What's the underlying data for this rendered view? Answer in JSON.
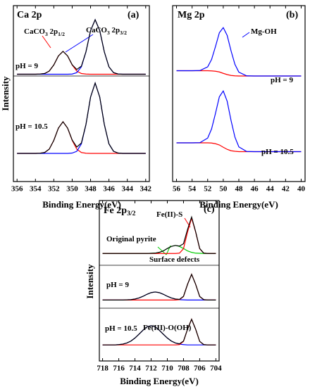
{
  "chart_data": [
    {
      "type": "line",
      "title": [
        "Ca 2p"
      ],
      "panel_label": "(a)",
      "ylabel": "Intensity",
      "xlabel": "Binding Energy(eV)",
      "annotations": [
        [
          "CaCO",
          "3",
          " 2p",
          "1/2"
        ],
        [
          "CaCO",
          "3",
          " 2p",
          "3/2"
        ],
        [
          "pH = 9"
        ],
        [
          "pH = 10.5"
        ]
      ],
      "xlim": [
        356.4,
        341.6
      ],
      "xticks": [
        356,
        354,
        352,
        350,
        348,
        346,
        344,
        342
      ],
      "ylim": [
        0,
        100
      ],
      "x": [
        356,
        355.5,
        355,
        354.5,
        354,
        353.5,
        353,
        352.5,
        352,
        351.5,
        351,
        350.5,
        350,
        349.5,
        349,
        348.5,
        348,
        347.5,
        347,
        346.5,
        346,
        345.5,
        345,
        344.5,
        344,
        343.5,
        343,
        342.5,
        342
      ],
      "series": [
        {
          "color": "#ff0000",
          "values": [
            61,
            61,
            61,
            61,
            61,
            61.1,
            61.4,
            62.8,
            66.3,
            71.4,
            74,
            71.4,
            66.3,
            62.8,
            61.4,
            61.1,
            61,
            61,
            61,
            61,
            61,
            61,
            61,
            61,
            61,
            61,
            61,
            61,
            61
          ]
        },
        {
          "color": "#0000ff",
          "values": [
            61,
            61,
            61,
            61,
            61,
            61,
            61,
            61,
            61,
            61,
            61,
            61,
            61.1,
            61.9,
            65.2,
            73.7,
            85.8,
            92,
            85.8,
            73.7,
            65.2,
            61.9,
            61.1,
            61,
            61,
            61,
            61,
            61,
            61
          ]
        },
        {
          "color": "#000000",
          "values": [
            61,
            61,
            61,
            61,
            61,
            61.1,
            61.4,
            62.8,
            66.3,
            71.4,
            74,
            71.4,
            66.4,
            63.7,
            65.6,
            73.8,
            85.8,
            92,
            85.8,
            73.7,
            65.2,
            61.9,
            61.1,
            61,
            61,
            61,
            61,
            61,
            61
          ]
        },
        {
          "color": "#ff0000",
          "values": [
            16,
            16,
            16,
            16,
            16,
            16.1,
            16.5,
            18.4,
            23.4,
            30.4,
            34,
            30.4,
            23.4,
            18.4,
            16.5,
            16.1,
            16,
            16,
            16,
            16,
            16,
            16,
            16,
            16,
            16,
            16,
            16,
            16,
            16
          ]
        },
        {
          "color": "#0000ff",
          "values": [
            16,
            16,
            16,
            16,
            16,
            16,
            16,
            16,
            16,
            16,
            16,
            16,
            16.2,
            17.2,
            21.4,
            32.4,
            48,
            56,
            48,
            32.4,
            21.4,
            17.2,
            16.2,
            16,
            16,
            16,
            16,
            16,
            16
          ]
        },
        {
          "color": "#000000",
          "values": [
            16,
            16,
            16,
            16,
            16,
            16.1,
            16.5,
            18.4,
            23.4,
            30.4,
            34,
            30.4,
            23.6,
            19.6,
            21.9,
            32.5,
            48,
            56,
            48,
            32.4,
            21.4,
            17.2,
            16.2,
            16,
            16,
            16,
            16,
            16,
            16
          ]
        }
      ]
    },
    {
      "type": "line",
      "title": [
        "Mg 2p"
      ],
      "panel_label": "(b)",
      "xlabel": "Binding Energy(eV)",
      "annotations": [
        [
          "Mg-OH"
        ],
        [
          "pH = 9"
        ],
        [
          "pH = 10.5"
        ]
      ],
      "xlim": [
        56.5,
        39.5
      ],
      "xticks": [
        56,
        54,
        52,
        50,
        48,
        46,
        44,
        42,
        40
      ],
      "ylim": [
        0,
        100
      ],
      "x": [
        56,
        55,
        54,
        53,
        52,
        51.5,
        51,
        50.5,
        50,
        49.5,
        49,
        48.5,
        48,
        47,
        46,
        45,
        44,
        43,
        42,
        41,
        40
      ],
      "series": [
        {
          "color": "#ff0000",
          "values": [
            63,
            63,
            63,
            63,
            63,
            62.9,
            62.7,
            62.3,
            61.5,
            60.8,
            60.3,
            60.1,
            60,
            60,
            60,
            60,
            60,
            60,
            60,
            60,
            60
          ]
        },
        {
          "color": "#0000ff",
          "values": [
            63,
            63,
            63,
            63.1,
            65.2,
            69.4,
            76.7,
            84.6,
            87.5,
            83.1,
            74.3,
            66.6,
            62.2,
            60.1,
            60,
            60,
            60,
            60,
            60,
            60,
            60
          ]
        },
        {
          "color": "#ff0000",
          "values": [
            22,
            22,
            22,
            22,
            22,
            21.9,
            21.5,
            20.8,
            19.5,
            18.3,
            17.5,
            17.2,
            17,
            17,
            17,
            17,
            17,
            17,
            17,
            17,
            17
          ]
        },
        {
          "color": "#0000ff",
          "values": [
            22,
            22,
            22,
            22.1,
            24.7,
            29.9,
            38.7,
            48.2,
            51.5,
            45.7,
            34.7,
            25.2,
            19.7,
            17.1,
            17,
            17,
            17,
            17,
            17,
            17,
            17
          ]
        }
      ]
    },
    {
      "type": "line",
      "title": [
        "Fe 2p",
        "3/2"
      ],
      "panel_label": "(c)",
      "ylabel": "Intensity",
      "xlabel": "Binding Energy(eV)",
      "annotations": [
        [
          "Fe(II)-S"
        ],
        [
          "Original pyrite"
        ],
        [
          "Surface defects"
        ],
        [
          "pH = 9"
        ],
        [
          "pH = 10.5"
        ],
        [
          "Fe(III)-O(OH)"
        ]
      ],
      "xlim": [
        718.4,
        703.6
      ],
      "xticks": [
        718,
        716,
        714,
        712,
        710,
        708,
        706,
        704
      ],
      "ylim": [
        0,
        100
      ],
      "x": [
        718,
        717.5,
        717,
        716.5,
        716,
        715.5,
        715,
        714.5,
        714,
        713.5,
        713,
        712.5,
        712,
        711.5,
        711,
        710.5,
        710,
        709.5,
        709,
        708.5,
        708,
        707.5,
        707,
        706.5,
        706,
        705.5,
        705,
        704.5,
        704
      ],
      "series": [
        {
          "color": "#00cc00",
          "values": [
            67,
            67,
            67,
            67,
            67,
            67,
            67,
            67,
            67,
            67,
            67,
            67,
            67.1,
            67.2,
            67.7,
            68.6,
            70.1,
            71.4,
            72,
            71.4,
            70.1,
            68.6,
            67.7,
            67.2,
            67.1,
            67,
            67,
            67,
            67
          ]
        },
        {
          "color": "#ff0000",
          "values": [
            67,
            67,
            67,
            67,
            67,
            67,
            67,
            67,
            67,
            67,
            67,
            67,
            67,
            67,
            67,
            67,
            67,
            67,
            67,
            67.2,
            70,
            80.4,
            89,
            80.4,
            70,
            67.2,
            67,
            67,
            67
          ]
        },
        {
          "color": "#000000",
          "values": [
            67,
            67,
            67,
            67,
            67,
            67,
            67,
            67,
            67,
            67,
            67,
            67,
            67.1,
            67.2,
            67.7,
            68.6,
            70.1,
            71.4,
            72,
            71.6,
            73.1,
            82,
            89.7,
            80.6,
            70.1,
            67.2,
            67,
            67,
            67
          ]
        },
        {
          "color": "#0000ff",
          "values": [
            38,
            38,
            38,
            38,
            38,
            38,
            38.1,
            38.2,
            38.6,
            39.3,
            40.3,
            41.6,
            42.6,
            43,
            42.6,
            41.6,
            40.3,
            39.3,
            38.6,
            38.2,
            38.1,
            38,
            38,
            38,
            38,
            38,
            38,
            38,
            38
          ]
        },
        {
          "color": "#ff0000",
          "values": [
            38,
            38,
            38,
            38,
            38,
            38,
            38,
            38,
            38,
            38,
            38,
            38,
            38,
            38,
            38,
            38,
            38,
            38,
            38,
            38.2,
            40.2,
            47.8,
            54,
            47.8,
            40.2,
            38.2,
            38,
            38,
            38
          ]
        },
        {
          "color": "#000000",
          "values": [
            38,
            38,
            38,
            38,
            38,
            38,
            38.1,
            38.2,
            38.6,
            39.3,
            40.3,
            41.6,
            42.6,
            43,
            42.6,
            41.6,
            40.3,
            39.3,
            38.6,
            38.4,
            40.3,
            47.8,
            54,
            47.8,
            40.2,
            38.2,
            38,
            38,
            38
          ]
        },
        {
          "color": "#0000ff",
          "values": [
            10,
            10,
            10,
            10,
            10.2,
            10.5,
            11.2,
            12.4,
            14.3,
            16.7,
            19.2,
            21.3,
            22,
            21.3,
            19.2,
            16.7,
            14.3,
            12.4,
            11.2,
            10.5,
            10.2,
            10,
            10,
            10,
            10,
            10,
            10,
            10,
            10
          ]
        },
        {
          "color": "#ff0000",
          "values": [
            10,
            10,
            10,
            10,
            10,
            10,
            10,
            10,
            10,
            10,
            10,
            10,
            10,
            10,
            10,
            10,
            10,
            10,
            10,
            10.2,
            12.2,
            19.8,
            26,
            19.8,
            12.2,
            10.2,
            10,
            10,
            10
          ]
        },
        {
          "color": "#000000",
          "values": [
            10,
            10,
            10,
            10,
            10.2,
            10.5,
            11.2,
            12.4,
            14.3,
            16.7,
            19.2,
            21.3,
            22,
            21.3,
            19.2,
            16.7,
            14.3,
            12.4,
            11.2,
            10.7,
            12.4,
            19.8,
            26,
            19.8,
            12.2,
            10.2,
            10,
            10,
            10
          ]
        }
      ]
    }
  ]
}
